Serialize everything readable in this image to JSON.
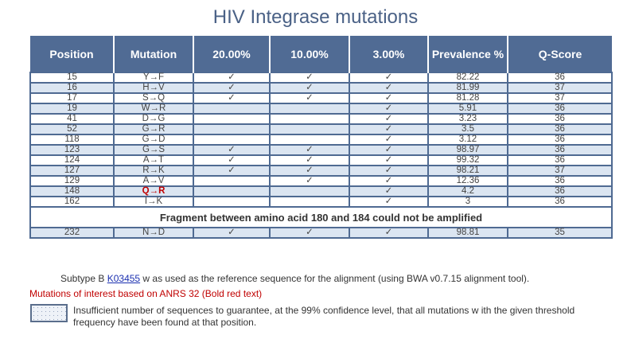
{
  "title": "HIV Integrase mutations",
  "columns": [
    "Position",
    "Mutation",
    "20.00%",
    "10.00%",
    "3.00%",
    "Prevalence %",
    "Q-Score"
  ],
  "check": "✓",
  "rows": [
    {
      "position": "15",
      "mutation": "Y→F",
      "c20": true,
      "c10": true,
      "c3": true,
      "prevalence": "82.22",
      "qscore": "36"
    },
    {
      "position": "16",
      "mutation": "H→V",
      "c20": true,
      "c10": true,
      "c3": true,
      "prevalence": "81.99",
      "qscore": "37"
    },
    {
      "position": "17",
      "mutation": "S→Q",
      "c20": true,
      "c10": true,
      "c3": true,
      "prevalence": "81.28",
      "qscore": "37"
    },
    {
      "position": "19",
      "mutation": "W→R",
      "c20": false,
      "c10": false,
      "c3": true,
      "prevalence": "5.91",
      "qscore": "36"
    },
    {
      "position": "41",
      "mutation": "D→G",
      "c20": false,
      "c10": false,
      "c3": true,
      "prevalence": "3.23",
      "qscore": "36"
    },
    {
      "position": "52",
      "mutation": "G→R",
      "c20": false,
      "c10": false,
      "c3": true,
      "prevalence": "3.5",
      "qscore": "36"
    },
    {
      "position": "118",
      "mutation": "G→D",
      "c20": false,
      "c10": false,
      "c3": true,
      "prevalence": "3.12",
      "qscore": "36"
    },
    {
      "position": "123",
      "mutation": "G→S",
      "c20": true,
      "c10": true,
      "c3": true,
      "prevalence": "98.97",
      "qscore": "36"
    },
    {
      "position": "124",
      "mutation": "A→T",
      "c20": true,
      "c10": true,
      "c3": true,
      "prevalence": "99.32",
      "qscore": "36"
    },
    {
      "position": "127",
      "mutation": "R→K",
      "c20": true,
      "c10": true,
      "c3": true,
      "prevalence": "98.21",
      "qscore": "37"
    },
    {
      "position": "129",
      "mutation": "A→V",
      "c20": false,
      "c10": true,
      "c3": true,
      "prevalence": "12.36",
      "qscore": "36"
    },
    {
      "position": "148",
      "mutation": "Q→R",
      "c20": false,
      "c10": false,
      "c3": true,
      "prevalence": "4.2",
      "qscore": "36",
      "of_interest": true
    },
    {
      "position": "162",
      "mutation": "I→K",
      "c20": false,
      "c10": false,
      "c3": true,
      "prevalence": "3",
      "qscore": "36"
    }
  ],
  "fragment_note": "Fragment between amino acid 180 and 184 could not be amplified",
  "rows_after": [
    {
      "position": "232",
      "mutation": "N→D",
      "c20": true,
      "c10": true,
      "c3": true,
      "prevalence": "98.81",
      "qscore": "35"
    }
  ],
  "footer": {
    "ref_before": "Subtype B ",
    "ref_link": "K03455",
    "ref_after": " w as used as the reference sequence for the alignment (using BWA v0.7.15 alignment tool).",
    "interest_note": "Mutations of interest based on ANRS 32 (Bold red text)",
    "legend_text": "Insufficient number of sequences to guarantee, at the 99% confidence level, that all mutations w ith the given threshold frequency have been found at that position."
  },
  "colors": {
    "header": "#506b94",
    "alt_row": "#dbe5f1",
    "interest": "#c00000",
    "link": "#1a2fb0"
  }
}
